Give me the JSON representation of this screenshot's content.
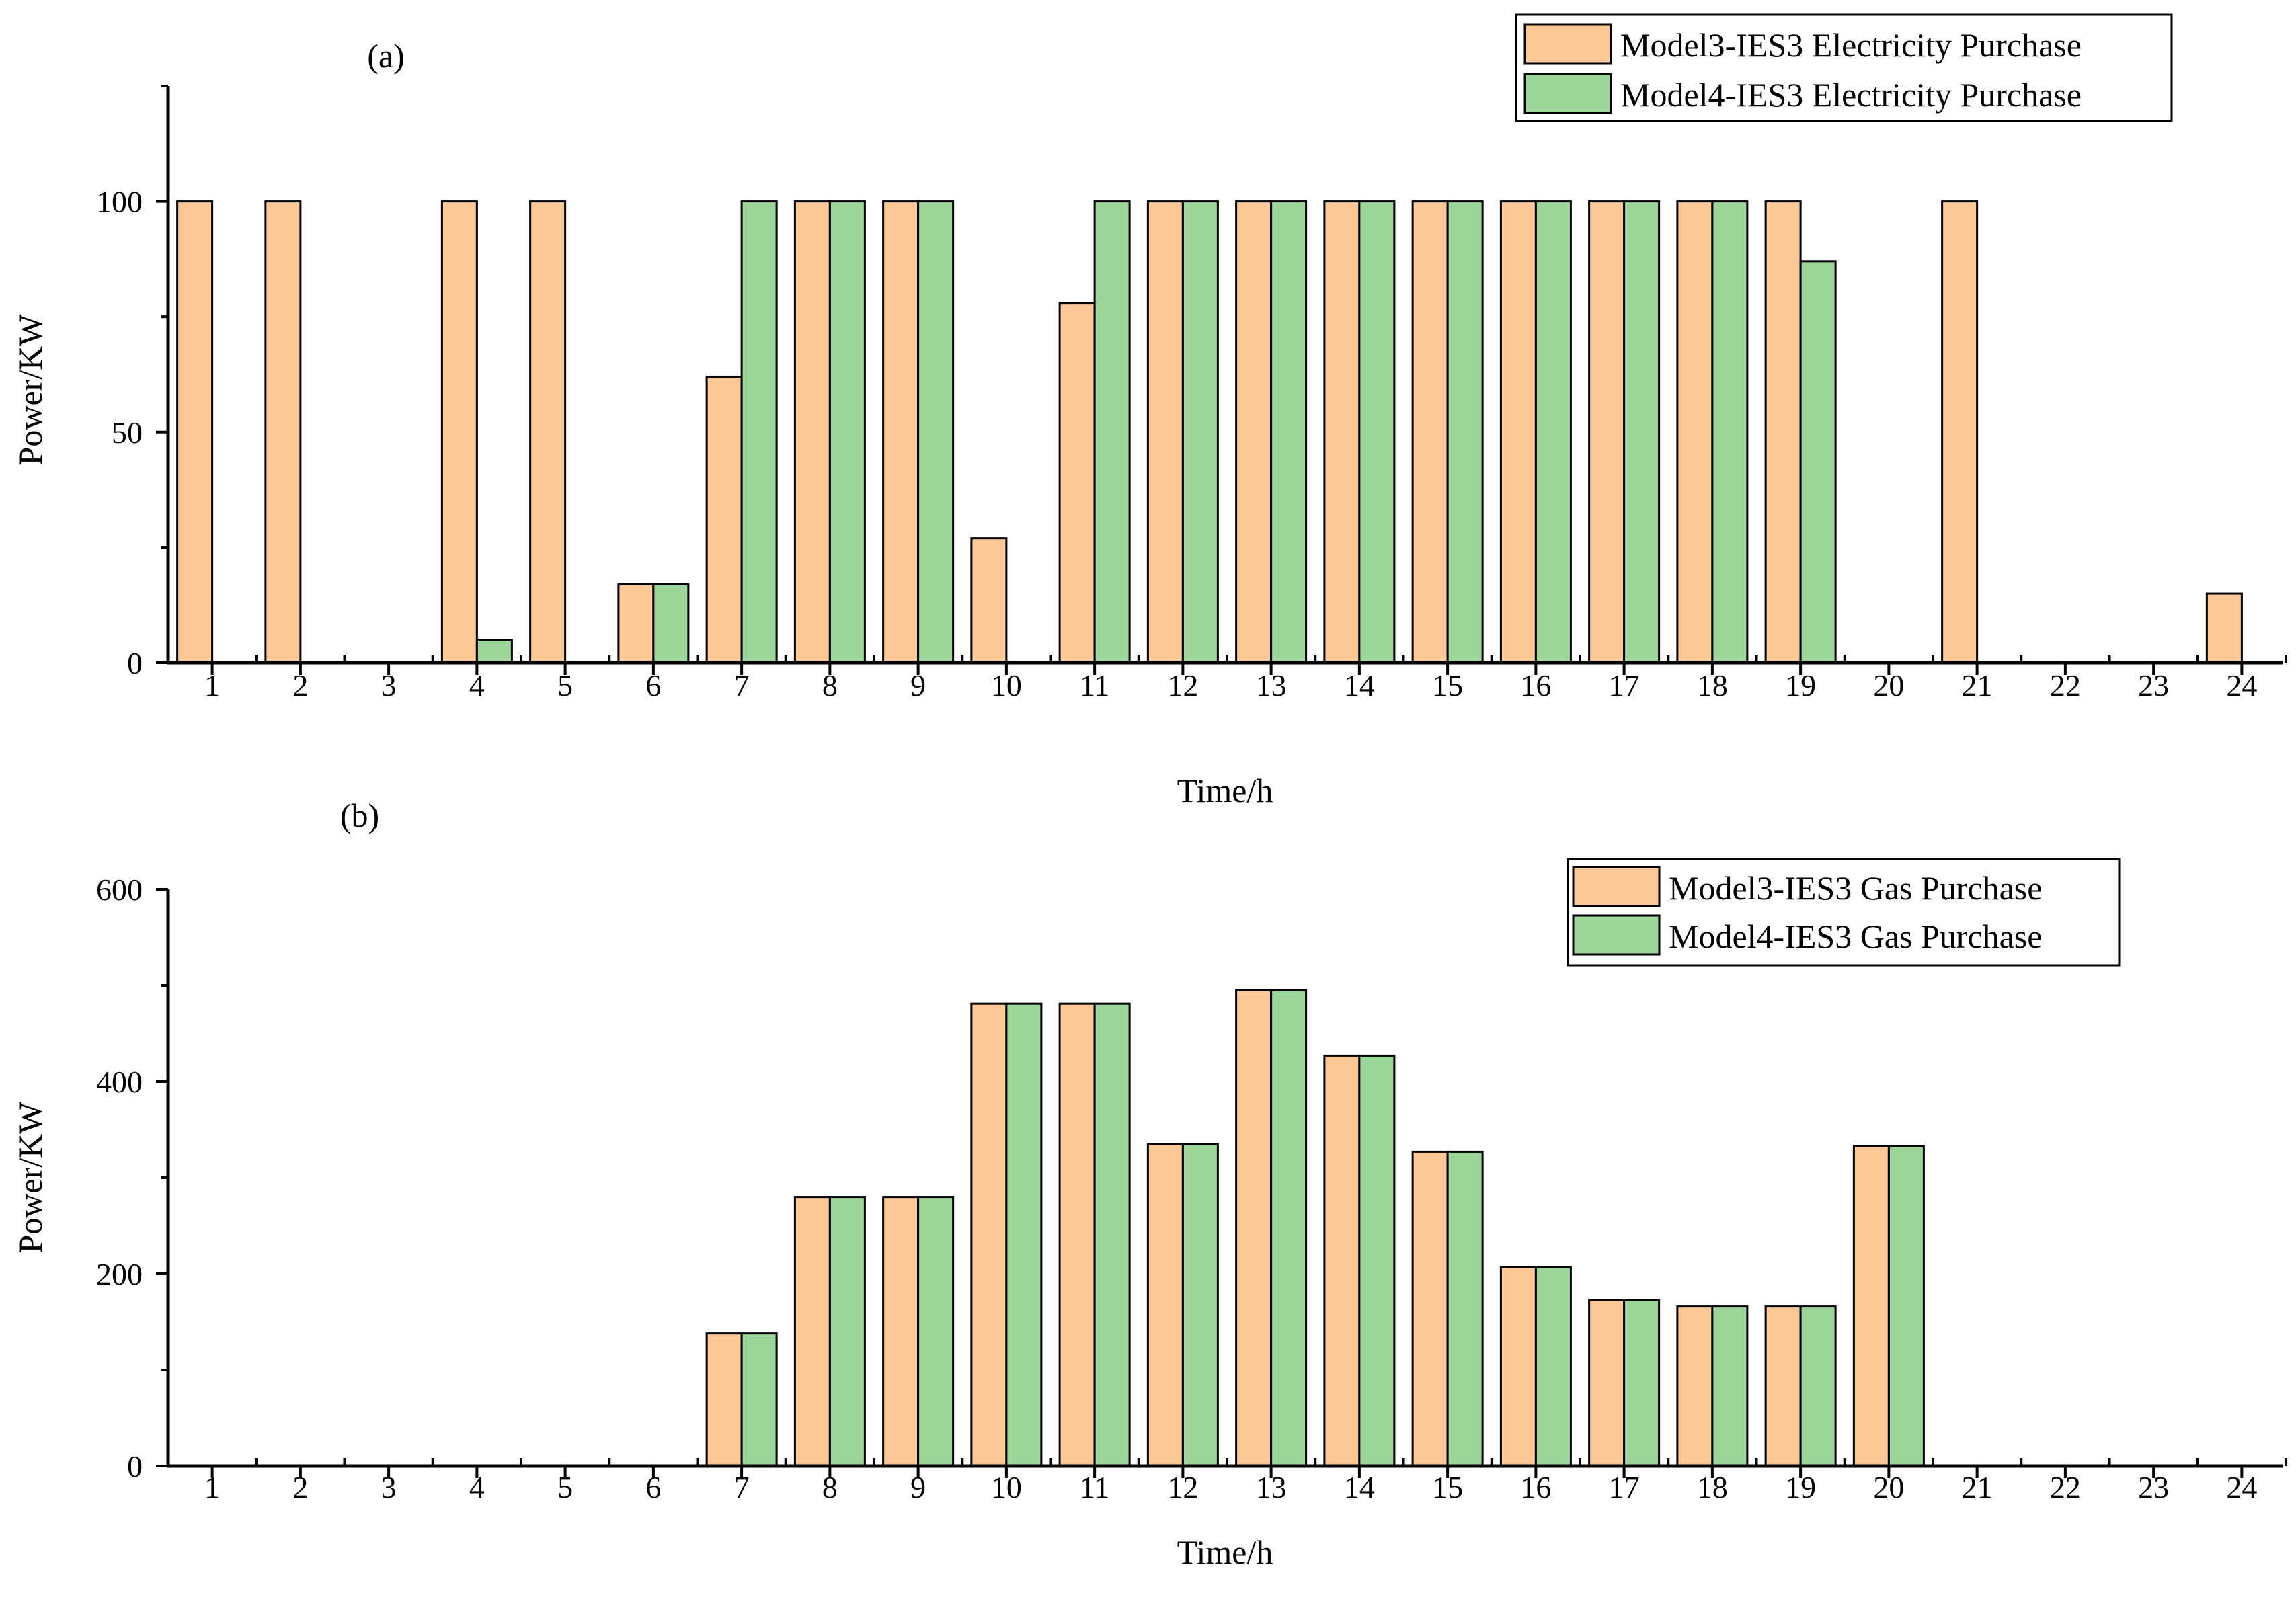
{
  "colors": {
    "model3": "#fcc996",
    "model4": "#9dd69b",
    "axis": "#000000",
    "background": "#ffffff"
  },
  "chart_data": [
    {
      "panel_label": "(a)",
      "type": "bar",
      "xlabel": "Time/h",
      "ylabel": "Power/KW",
      "ylim": [
        0,
        125
      ],
      "yticks": [
        0,
        50,
        100
      ],
      "categories": [
        "1",
        "2",
        "3",
        "4",
        "5",
        "6",
        "7",
        "8",
        "9",
        "10",
        "11",
        "12",
        "13",
        "14",
        "15",
        "16",
        "17",
        "18",
        "19",
        "20",
        "21",
        "22",
        "23",
        "24"
      ],
      "legend_position": "top-right",
      "series": [
        {
          "name": "Model3-IES3 Electricity Purchase",
          "values": [
            100,
            100,
            0,
            100,
            100,
            17,
            62,
            100,
            100,
            27,
            78,
            100,
            100,
            100,
            100,
            100,
            100,
            100,
            100,
            0,
            100,
            0,
            0,
            15
          ]
        },
        {
          "name": "Model4-IES3 Electricity Purchase",
          "values": [
            0,
            0,
            0,
            5,
            0,
            17,
            100,
            100,
            100,
            0,
            100,
            100,
            100,
            100,
            100,
            100,
            100,
            100,
            87,
            0,
            0,
            0,
            0,
            0
          ]
        }
      ]
    },
    {
      "panel_label": "(b)",
      "type": "bar",
      "xlabel": "Time/h",
      "ylabel": "Power/KW",
      "ylim": [
        0,
        600
      ],
      "yticks": [
        0,
        200,
        400,
        600
      ],
      "categories": [
        "1",
        "2",
        "3",
        "4",
        "5",
        "6",
        "7",
        "8",
        "9",
        "10",
        "11",
        "12",
        "13",
        "14",
        "15",
        "16",
        "17",
        "18",
        "19",
        "20",
        "21",
        "22",
        "23",
        "24"
      ],
      "legend_position": "top-right",
      "series": [
        {
          "name": "Model3-IES3 Gas Purchase",
          "values": [
            0,
            0,
            0,
            0,
            0,
            0,
            138,
            280,
            280,
            481,
            481,
            335,
            495,
            427,
            327,
            207,
            173,
            166,
            166,
            333,
            0,
            0,
            0,
            0
          ]
        },
        {
          "name": "Model4-IES3 Gas Purchase",
          "values": [
            0,
            0,
            0,
            0,
            0,
            0,
            138,
            280,
            280,
            481,
            481,
            335,
            495,
            427,
            327,
            207,
            173,
            166,
            166,
            333,
            0,
            0,
            0,
            0
          ]
        }
      ]
    }
  ]
}
